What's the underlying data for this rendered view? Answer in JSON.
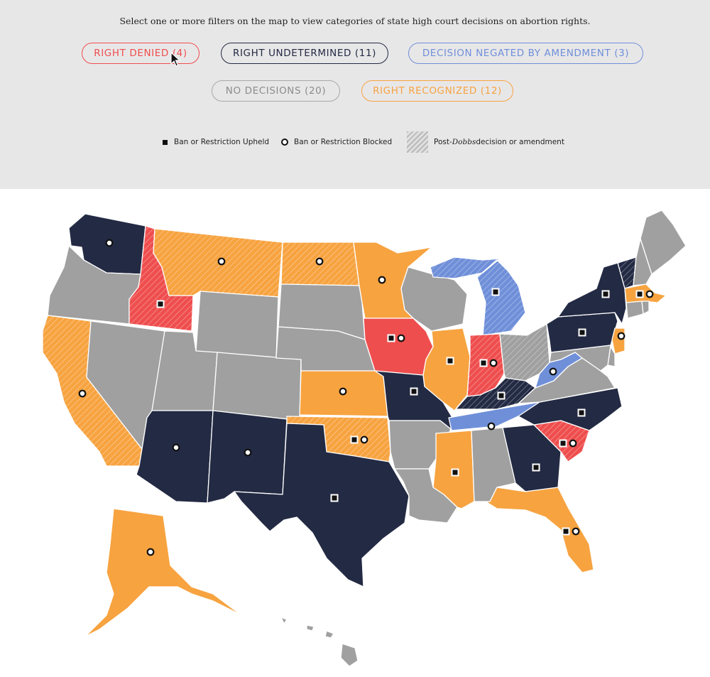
{
  "instruction": "Select one or more filters on the map to view categories of state high court decisions on abortion rights.",
  "filters": [
    {
      "label": "RIGHT DENIED",
      "count": "(4)",
      "color": "#ef4e4e"
    },
    {
      "label": "RIGHT UNDETERMINED",
      "count": "(11)",
      "color": "#232a43"
    },
    {
      "label": "DECISION NEGATED BY AMENDMENT",
      "count": "(3)",
      "color": "#6f8fd9"
    },
    {
      "label": "NO DECISIONS",
      "count": "(20)",
      "color": "#a0a0a0"
    },
    {
      "label": "RIGHT RECOGNIZED",
      "count": "(12)",
      "color": "#f7a340"
    }
  ],
  "legend": {
    "upheld": "Ban or Restriction Upheld",
    "blocked": "Ban or Restriction Blocked",
    "post_prefix": "Post-",
    "post_italic": "Dobbs",
    "post_suffix": " decision or amendment"
  },
  "colors": {
    "denied": "#ef4e4e",
    "undetermined": "#232a43",
    "negated": "#6f8fd9",
    "none": "#a0a0a0",
    "recognized": "#f7a340",
    "panel": "#e8e7e8"
  },
  "states": {
    "WA": {
      "category": "undetermined",
      "markers": [
        "blocked"
      ],
      "post_dobbs": false
    },
    "OR": {
      "category": "none",
      "markers": [],
      "post_dobbs": false
    },
    "CA": {
      "category": "recognized",
      "markers": [
        "blocked"
      ],
      "post_dobbs": true
    },
    "ID": {
      "category": "denied",
      "markers": [
        "upheld"
      ],
      "post_dobbs": true
    },
    "NV": {
      "category": "none",
      "markers": [],
      "post_dobbs": false
    },
    "MT": {
      "category": "recognized",
      "markers": [
        "blocked"
      ],
      "post_dobbs": true
    },
    "WY": {
      "category": "none",
      "markers": [],
      "post_dobbs": false
    },
    "UT": {
      "category": "none",
      "markers": [],
      "post_dobbs": false
    },
    "CO": {
      "category": "none",
      "markers": [],
      "post_dobbs": false
    },
    "AZ": {
      "category": "undetermined",
      "markers": [
        "blocked"
      ],
      "post_dobbs": false
    },
    "NM": {
      "category": "undetermined",
      "markers": [
        "blocked"
      ],
      "post_dobbs": false
    },
    "ND": {
      "category": "recognized",
      "markers": [
        "blocked"
      ],
      "post_dobbs": true
    },
    "SD": {
      "category": "none",
      "markers": [],
      "post_dobbs": false
    },
    "NE": {
      "category": "none",
      "markers": [],
      "post_dobbs": false
    },
    "KS": {
      "category": "recognized",
      "markers": [
        "blocked"
      ],
      "post_dobbs": false
    },
    "OK": {
      "category": "recognized",
      "markers": [
        "upheld",
        "blocked"
      ],
      "post_dobbs": true
    },
    "TX": {
      "category": "undetermined",
      "markers": [
        "upheld"
      ],
      "post_dobbs": false
    },
    "MN": {
      "category": "recognized",
      "markers": [
        "blocked"
      ],
      "post_dobbs": false
    },
    "IA": {
      "category": "denied",
      "markers": [
        "upheld",
        "blocked"
      ],
      "post_dobbs": false
    },
    "MO": {
      "category": "undetermined",
      "markers": [
        "upheld"
      ],
      "post_dobbs": false
    },
    "AR": {
      "category": "none",
      "markers": [],
      "post_dobbs": false
    },
    "LA": {
      "category": "none",
      "markers": [],
      "post_dobbs": false
    },
    "WI": {
      "category": "none",
      "markers": [],
      "post_dobbs": false
    },
    "IL": {
      "category": "recognized",
      "markers": [
        "upheld"
      ],
      "post_dobbs": false
    },
    "MI": {
      "category": "negated",
      "markers": [
        "upheld"
      ],
      "post_dobbs": true
    },
    "IN": {
      "category": "denied",
      "markers": [
        "upheld",
        "blocked"
      ],
      "post_dobbs": true
    },
    "OH": {
      "category": "none",
      "markers": [],
      "post_dobbs": true
    },
    "KY": {
      "category": "undetermined",
      "markers": [
        "upheld"
      ],
      "post_dobbs": true
    },
    "TN": {
      "category": "negated",
      "markers": [
        "blocked"
      ],
      "post_dobbs": false
    },
    "MS": {
      "category": "recognized",
      "markers": [
        "upheld"
      ],
      "post_dobbs": false
    },
    "AL": {
      "category": "none",
      "markers": [],
      "post_dobbs": false
    },
    "GA": {
      "category": "undetermined",
      "markers": [
        "upheld"
      ],
      "post_dobbs": false
    },
    "FL": {
      "category": "recognized",
      "markers": [
        "upheld",
        "blocked"
      ],
      "post_dobbs": false
    },
    "SC": {
      "category": "denied",
      "markers": [
        "upheld",
        "blocked"
      ],
      "post_dobbs": true
    },
    "NC": {
      "category": "undetermined",
      "markers": [
        "upheld"
      ],
      "post_dobbs": false
    },
    "VA": {
      "category": "none",
      "markers": [],
      "post_dobbs": false
    },
    "WV": {
      "category": "negated",
      "markers": [
        "blocked"
      ],
      "post_dobbs": false
    },
    "PA": {
      "category": "undetermined",
      "markers": [
        "upheld"
      ],
      "post_dobbs": false
    },
    "NY": {
      "category": "undetermined",
      "markers": [
        "upheld"
      ],
      "post_dobbs": false
    },
    "VT": {
      "category": "undetermined",
      "markers": [],
      "post_dobbs": true
    },
    "NH": {
      "category": "none",
      "markers": [],
      "post_dobbs": false
    },
    "ME": {
      "category": "none",
      "markers": [],
      "post_dobbs": false
    },
    "MA": {
      "category": "recognized",
      "markers": [
        "upheld",
        "blocked"
      ],
      "post_dobbs": false
    },
    "CT": {
      "category": "none",
      "markers": [],
      "post_dobbs": false
    },
    "RI": {
      "category": "none",
      "markers": [],
      "post_dobbs": false
    },
    "NJ": {
      "category": "recognized",
      "markers": [
        "blocked"
      ],
      "post_dobbs": false
    },
    "DE": {
      "category": "none",
      "markers": [],
      "post_dobbs": false
    },
    "MD": {
      "category": "none",
      "markers": [],
      "post_dobbs": false
    },
    "AK": {
      "category": "recognized",
      "markers": [
        "blocked"
      ],
      "post_dobbs": false
    },
    "HI": {
      "category": "none",
      "markers": [],
      "post_dobbs": false
    }
  }
}
